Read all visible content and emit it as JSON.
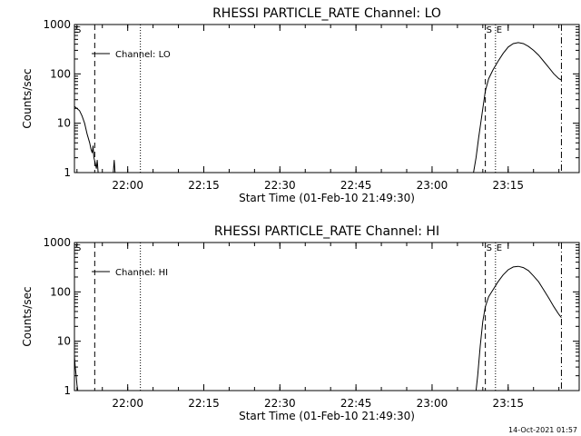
{
  "chart_data": [
    {
      "type": "line",
      "title": "RHESSI PARTICLE_RATE Channel: LO",
      "xlabel": "Start Time (01-Feb-10 21:49:30)",
      "ylabel": "Counts/sec",
      "y_scale": "log",
      "ylim": [
        1,
        1000
      ],
      "xlim": [
        "21:49:30",
        "23:29:00"
      ],
      "x_ticks": [
        "22:00",
        "22:15",
        "22:30",
        "22:45",
        "23:00",
        "23:15"
      ],
      "y_ticks": [
        "1",
        "10",
        "100",
        "1000"
      ],
      "legend": {
        "label": "Channel: LO",
        "position": "top-left"
      },
      "markers": [
        {
          "label": "S",
          "x": "21:49:30",
          "style": "dash-dot"
        },
        {
          "label": "",
          "x": "21:53:30",
          "style": "dashed"
        },
        {
          "label": "",
          "x": "22:02:30",
          "style": "dotted"
        },
        {
          "label": "S",
          "x": "23:10:30",
          "style": "dashed"
        },
        {
          "label": "E",
          "x": "23:12:30",
          "style": "dotted"
        },
        {
          "label": "",
          "x": "23:25:30",
          "style": "dash-dot"
        }
      ],
      "series": [
        {
          "name": "Channel: LO",
          "segments": [
            [
              [
                "21:49:30",
                22
              ],
              [
                "21:50:30",
                18
              ],
              [
                "21:51:00",
                14
              ],
              [
                "21:51:30",
                10
              ],
              [
                "21:52:00",
                6
              ],
              [
                "21:52:30",
                4
              ],
              [
                "21:52:45",
                3
              ],
              [
                "21:53:00",
                2.5
              ],
              [
                "21:53:10",
                3.5
              ],
              [
                "21:53:20",
                2
              ],
              [
                "21:53:35",
                1.6
              ],
              [
                "21:53:50",
                1.2
              ],
              [
                "21:54:00",
                1.8
              ],
              [
                "21:54:10",
                1
              ]
            ],
            [
              [
                "21:57:10",
                1
              ],
              [
                "21:57:20",
                1.8
              ],
              [
                "21:57:30",
                1
              ]
            ],
            [
              [
                "23:08:10",
                1
              ],
              [
                "23:08:40",
                2
              ],
              [
                "23:09:10",
                5
              ],
              [
                "23:09:50",
                15
              ],
              [
                "23:10:30",
                45
              ],
              [
                "23:11:10",
                80
              ],
              [
                "23:12:00",
                120
              ],
              [
                "23:13:00",
                180
              ],
              [
                "23:14:00",
                260
              ],
              [
                "23:15:00",
                350
              ],
              [
                "23:16:00",
                410
              ],
              [
                "23:17:00",
                430
              ],
              [
                "23:18:00",
                410
              ],
              [
                "23:19:00",
                360
              ],
              [
                "23:20:00",
                300
              ],
              [
                "23:21:00",
                240
              ],
              [
                "23:22:00",
                180
              ],
              [
                "23:23:00",
                135
              ],
              [
                "23:24:00",
                100
              ],
              [
                "23:25:00",
                80
              ],
              [
                "23:25:30",
                75
              ]
            ]
          ]
        }
      ]
    },
    {
      "type": "line",
      "title": "RHESSI PARTICLE_RATE Channel: HI",
      "xlabel": "Start Time (01-Feb-10 21:49:30)",
      "ylabel": "Counts/sec",
      "y_scale": "log",
      "ylim": [
        1,
        1000
      ],
      "xlim": [
        "21:49:30",
        "23:29:00"
      ],
      "x_ticks": [
        "22:00",
        "22:15",
        "22:30",
        "22:45",
        "23:00",
        "23:15"
      ],
      "y_ticks": [
        "1",
        "10",
        "100",
        "1000"
      ],
      "legend": {
        "label": "Channel: HI",
        "position": "top-left"
      },
      "markers": [
        {
          "label": "S",
          "x": "21:49:30",
          "style": "dash-dot"
        },
        {
          "label": "",
          "x": "21:53:30",
          "style": "dashed"
        },
        {
          "label": "",
          "x": "22:02:30",
          "style": "dotted"
        },
        {
          "label": "S",
          "x": "23:10:30",
          "style": "dashed"
        },
        {
          "label": "E",
          "x": "23:12:30",
          "style": "dotted"
        },
        {
          "label": "",
          "x": "23:25:30",
          "style": "dash-dot"
        }
      ],
      "series": [
        {
          "name": "Channel: HI",
          "segments": [
            [
              [
                "21:49:30",
                5
              ],
              [
                "21:49:40",
                3
              ],
              [
                "21:49:50",
                2
              ],
              [
                "21:50:00",
                1.3
              ],
              [
                "21:50:10",
                1
              ]
            ],
            [
              [
                "23:08:40",
                1
              ],
              [
                "23:09:00",
                2
              ],
              [
                "23:09:30",
                8
              ],
              [
                "23:10:00",
                25
              ],
              [
                "23:10:30",
                50
              ],
              [
                "23:11:10",
                80
              ],
              [
                "23:12:00",
                110
              ],
              [
                "23:13:00",
                160
              ],
              [
                "23:14:00",
                220
              ],
              [
                "23:15:00",
                280
              ],
              [
                "23:16:00",
                320
              ],
              [
                "23:17:00",
                330
              ],
              [
                "23:18:00",
                310
              ],
              [
                "23:19:00",
                270
              ],
              [
                "23:20:00",
                210
              ],
              [
                "23:21:00",
                160
              ],
              [
                "23:22:00",
                110
              ],
              [
                "23:23:00",
                75
              ],
              [
                "23:24:00",
                50
              ],
              [
                "23:25:00",
                35
              ],
              [
                "23:25:30",
                30
              ]
            ]
          ]
        }
      ]
    }
  ],
  "footer": {
    "timestamp": "14-Oct-2021 01:57"
  }
}
